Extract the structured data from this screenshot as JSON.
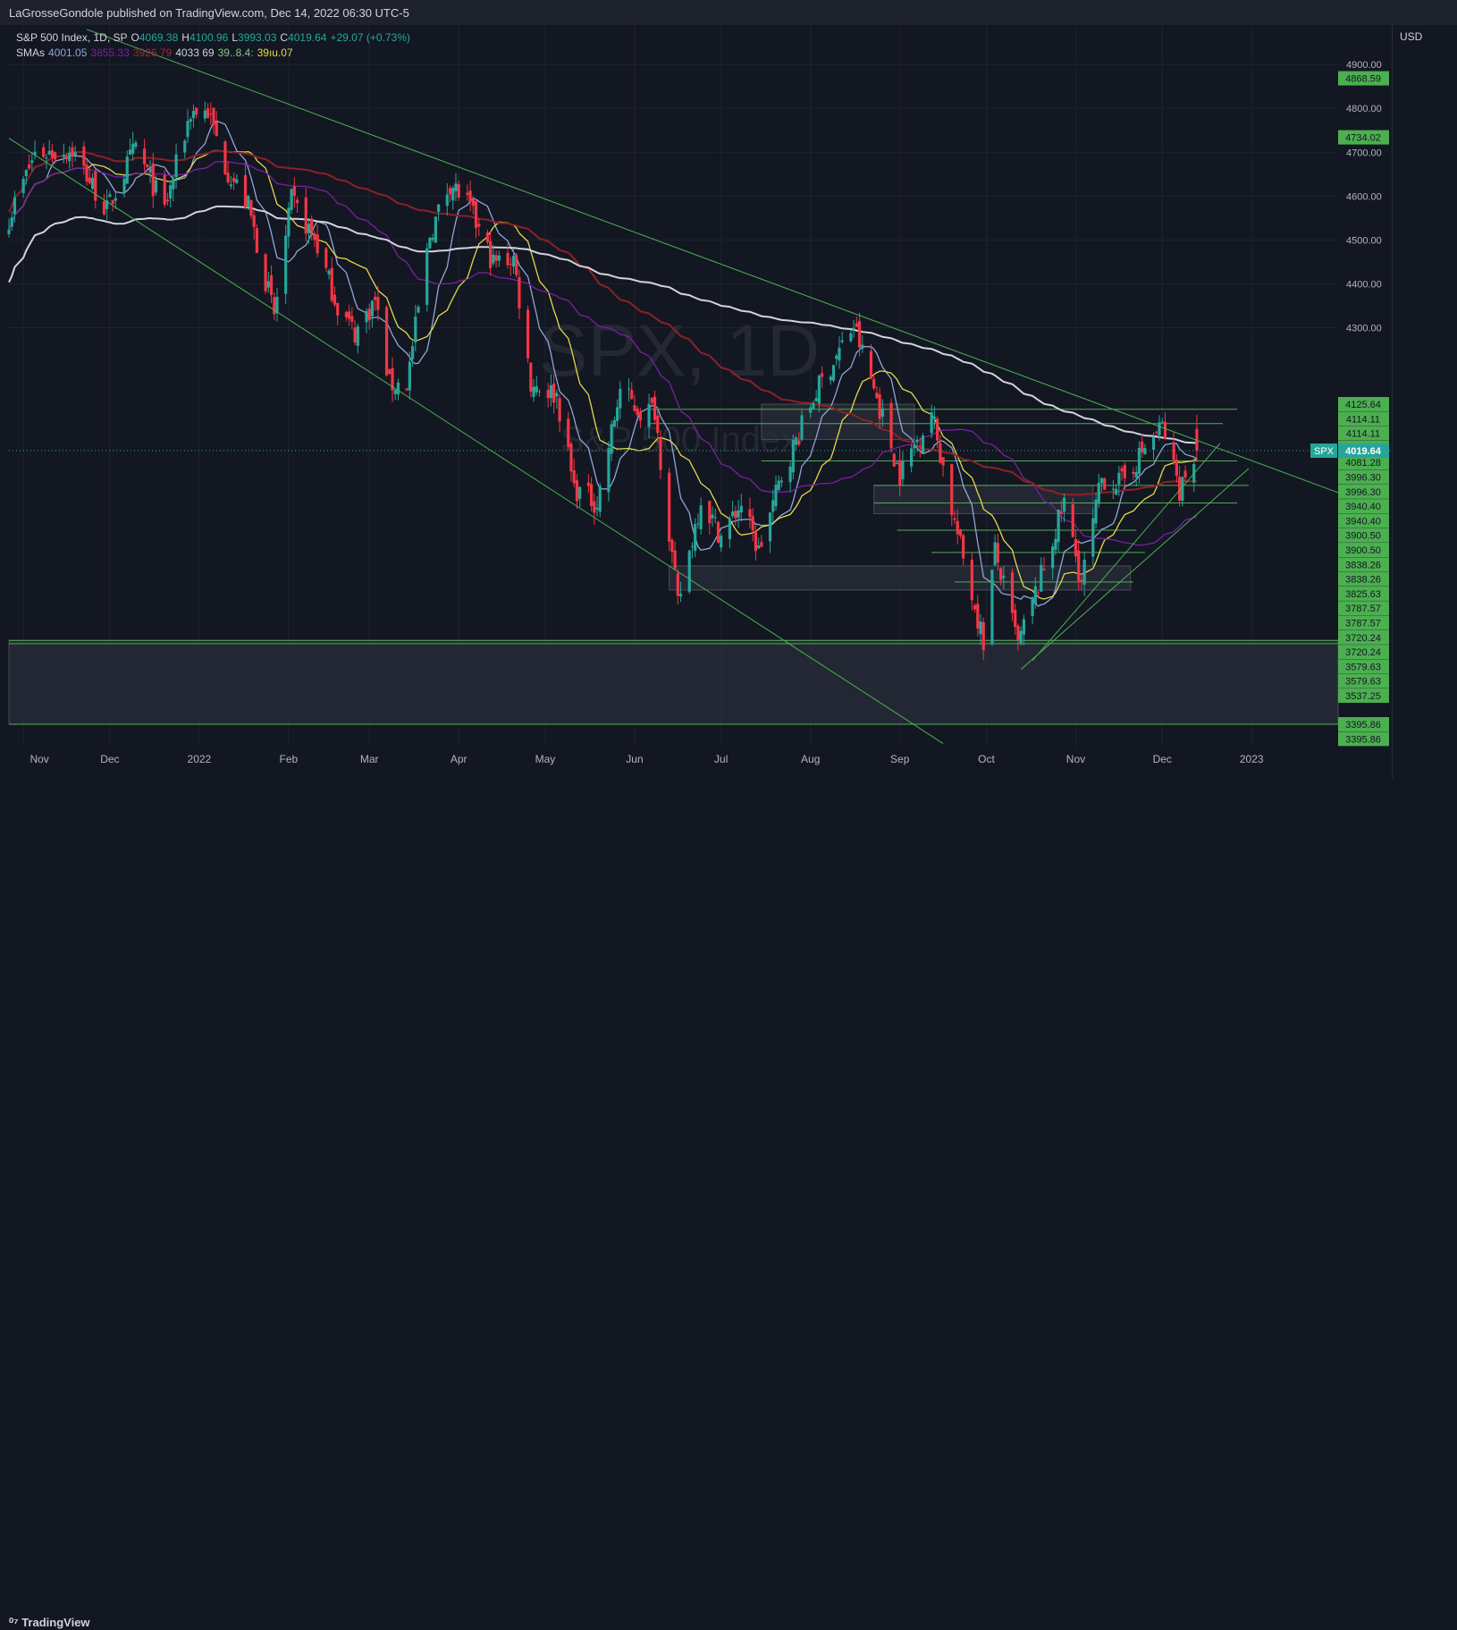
{
  "header": {
    "publisher": "LaGrosseGondole published on TradingView.com, Dec 14, 2022 06:30 UTC-5"
  },
  "legend": {
    "symbol": "S&P 500 Index, 1D, SP",
    "o_label": "O",
    "o": "4069.38",
    "h_label": "H",
    "h": "4100.96",
    "l_label": "L",
    "l": "3993.03",
    "c_label": "C",
    "c": "4019.64",
    "change": "+29.07 (+0.73%)",
    "smas_label": "SMAs",
    "sma1": "4001.05",
    "sma2": "3855.33",
    "sma3": "3926.79",
    "sma4": "4033 69",
    "sma5": "39..8.4:",
    "sma6": "39ıu.07"
  },
  "watermark": {
    "ticker": "SPX, 1D",
    "name": "S&P 500 Index"
  },
  "axis": {
    "currency": "USD"
  },
  "footer": {
    "brand": "TradingView"
  },
  "colors": {
    "background": "#131722",
    "up": "#26a69a",
    "down": "#f23645",
    "sma_blue": "#8fa6d8",
    "sma_purple": "#7b1fa2",
    "sma_red": "#8b2226",
    "sma_white": "#d1d4dc",
    "sma_yellow": "#e6d84a",
    "trendline": "#4caf50",
    "zone": "#787b86"
  },
  "chart_data": {
    "type": "candlestick",
    "title": "S&P 500 Index, 1D, SP",
    "ylabel": "USD",
    "ylim": [
      3345,
      4990
    ],
    "x_tick_labels": [
      "Nov",
      "Dec",
      "2022",
      "Feb",
      "Mar",
      "Apr",
      "May",
      "Jun",
      "Jul",
      "Aug",
      "Sep",
      "Oct",
      "Nov",
      "Dec",
      "2023"
    ],
    "y_ticks": [
      4900,
      4800,
      4700,
      4600,
      4500,
      4400,
      4300
    ],
    "last_price": {
      "ticker": "SPX",
      "value": 4019.64
    },
    "price_labels": [
      {
        "value": 4868.59,
        "label": "4868.59"
      },
      {
        "value": 4734.02,
        "label": "4734.02"
      },
      {
        "value": 4125.64,
        "label": "4125.64"
      },
      {
        "value": 4114.11,
        "label": "4114.11"
      },
      {
        "value": 4114.11,
        "label": "4114.11"
      },
      {
        "value": 4081.28,
        "label": "4081.28"
      },
      {
        "value": 4081.28,
        "label": "4081.28"
      },
      {
        "value": 3996.3,
        "label": "3996.30"
      },
      {
        "value": 3996.3,
        "label": "3996.30"
      },
      {
        "value": 3940.4,
        "label": "3940.40"
      },
      {
        "value": 3940.4,
        "label": "3940.40"
      },
      {
        "value": 3900.5,
        "label": "3900.50"
      },
      {
        "value": 3900.5,
        "label": "3900.50"
      },
      {
        "value": 3838.26,
        "label": "3838.26"
      },
      {
        "value": 3838.26,
        "label": "3838.26"
      },
      {
        "value": 3825.63,
        "label": "3825.63"
      },
      {
        "value": 3787.57,
        "label": "3787.57"
      },
      {
        "value": 3787.57,
        "label": "3787.57"
      },
      {
        "value": 3720.24,
        "label": "3720.24"
      },
      {
        "value": 3720.24,
        "label": "3720.24"
      },
      {
        "value": 3579.63,
        "label": "3579.63"
      },
      {
        "value": 3579.63,
        "label": "3579.63"
      },
      {
        "value": 3537.25,
        "label": "3537.25"
      },
      {
        "value": 3395.86,
        "label": "3395.86"
      },
      {
        "value": 3395.86,
        "label": "3395.86"
      }
    ],
    "anchors": [
      [
        "2021-10-27",
        4551
      ],
      [
        "2021-11-05",
        4697
      ],
      [
        "2021-11-18",
        4704
      ],
      [
        "2021-11-30",
        4567
      ],
      [
        "2021-12-10",
        4712
      ],
      [
        "2021-12-20",
        4568
      ],
      [
        "2021-12-29",
        4793
      ],
      [
        "2022-01-04",
        4793
      ],
      [
        "2022-01-10",
        4670
      ],
      [
        "2022-01-18",
        4577
      ],
      [
        "2022-01-27",
        4327
      ],
      [
        "2022-02-02",
        4590
      ],
      [
        "2022-02-10",
        4504
      ],
      [
        "2022-02-18",
        4349
      ],
      [
        "2022-02-24",
        4288
      ],
      [
        "2022-03-03",
        4363
      ],
      [
        "2022-03-08",
        4170
      ],
      [
        "2022-03-14",
        4173
      ],
      [
        "2022-03-22",
        4511
      ],
      [
        "2022-03-29",
        4631
      ],
      [
        "2022-04-04",
        4582
      ],
      [
        "2022-04-13",
        4447
      ],
      [
        "2022-04-20",
        4460
      ],
      [
        "2022-04-26",
        4175
      ],
      [
        "2022-05-05",
        4147
      ],
      [
        "2022-05-11",
        3935
      ],
      [
        "2022-05-19",
        3900
      ],
      [
        "2022-05-27",
        4158
      ],
      [
        "2022-06-03",
        4108
      ],
      [
        "2022-06-08",
        4115
      ],
      [
        "2022-06-16",
        3667
      ],
      [
        "2022-06-24",
        3911
      ],
      [
        "2022-07-01",
        3825
      ],
      [
        "2022-07-08",
        3899
      ],
      [
        "2022-07-14",
        3790
      ],
      [
        "2022-07-22",
        3962
      ],
      [
        "2022-08-03",
        4155
      ],
      [
        "2022-08-16",
        4305
      ],
      [
        "2022-08-24",
        4140
      ],
      [
        "2022-09-01",
        3966
      ],
      [
        "2022-09-12",
        4110
      ],
      [
        "2022-09-20",
        3855
      ],
      [
        "2022-09-30",
        3585
      ],
      [
        "2022-10-04",
        3791
      ],
      [
        "2022-10-12",
        3577
      ],
      [
        "2022-10-21",
        3752
      ],
      [
        "2022-10-28",
        3901
      ],
      [
        "2022-11-03",
        3719
      ],
      [
        "2022-11-10",
        3956
      ],
      [
        "2022-11-17",
        3946
      ],
      [
        "2022-11-25",
        4026
      ],
      [
        "2022-12-01",
        4076
      ],
      [
        "2022-12-07",
        3933
      ],
      [
        "2022-12-13",
        4019.64
      ]
    ],
    "sma_series": [
      {
        "color": "#8fa6d8",
        "period": 10
      },
      {
        "color": "#e6d84a",
        "period": 20
      },
      {
        "color": "#7b1fa2",
        "period": 50
      },
      {
        "color": "#8b2226",
        "period": 100
      },
      {
        "color": "#d1d4dc",
        "period": 200
      }
    ],
    "horizontal_levels": [
      {
        "value": 4114.11,
        "from": "2022-06-06",
        "to": "2022-12-27"
      },
      {
        "value": 4081.28,
        "from": "2022-06-06",
        "to": "2022-12-22"
      },
      {
        "value": 3996.3,
        "from": "2022-07-15",
        "to": "2022-12-27"
      },
      {
        "value": 3940.4,
        "from": "2022-08-23",
        "to": "2022-12-31"
      },
      {
        "value": 3900.5,
        "from": "2022-08-23",
        "to": "2022-12-27"
      },
      {
        "value": 3838.26,
        "from": "2022-08-31",
        "to": "2022-11-22"
      },
      {
        "value": 3787.57,
        "from": "2022-09-12",
        "to": "2022-11-25"
      },
      {
        "value": 3720.24,
        "from": "2022-09-20",
        "to": "2022-11-21"
      },
      {
        "value": 3587.0,
        "from": "2021-10-27",
        "to": "2023-01-31"
      },
      {
        "value": 3579.63,
        "from": "2021-10-27",
        "to": "2023-01-31"
      },
      {
        "value": 3395.86,
        "from": "2021-10-27",
        "to": "2023-01-31"
      }
    ],
    "zones": [
      {
        "from": "2022-07-15",
        "to": "2022-09-06",
        "top": 4125.64,
        "bottom": 4045
      },
      {
        "from": "2022-08-23",
        "to": "2022-11-07",
        "top": 3940.4,
        "bottom": 3876
      },
      {
        "from": "2022-06-13",
        "to": "2022-11-20",
        "top": 3757,
        "bottom": 3702
      },
      {
        "from": "2021-10-27",
        "to": "2023-01-31",
        "top": 3587.0,
        "bottom": 3395.86
      }
    ],
    "trendlines": [
      {
        "from": [
          "2021-11-23",
          4980
        ],
        "to": [
          "2023-01-31",
          3924
        ]
      },
      {
        "from": [
          "2021-10-27",
          4732
        ],
        "to": [
          "2022-09-16",
          3352
        ]
      },
      {
        "from": [
          "2022-10-13",
          3521
        ],
        "to": [
          "2022-12-31",
          3979
        ]
      },
      {
        "from": [
          "2022-10-17",
          3541
        ],
        "to": [
          "2022-12-21",
          4036
        ]
      }
    ]
  }
}
